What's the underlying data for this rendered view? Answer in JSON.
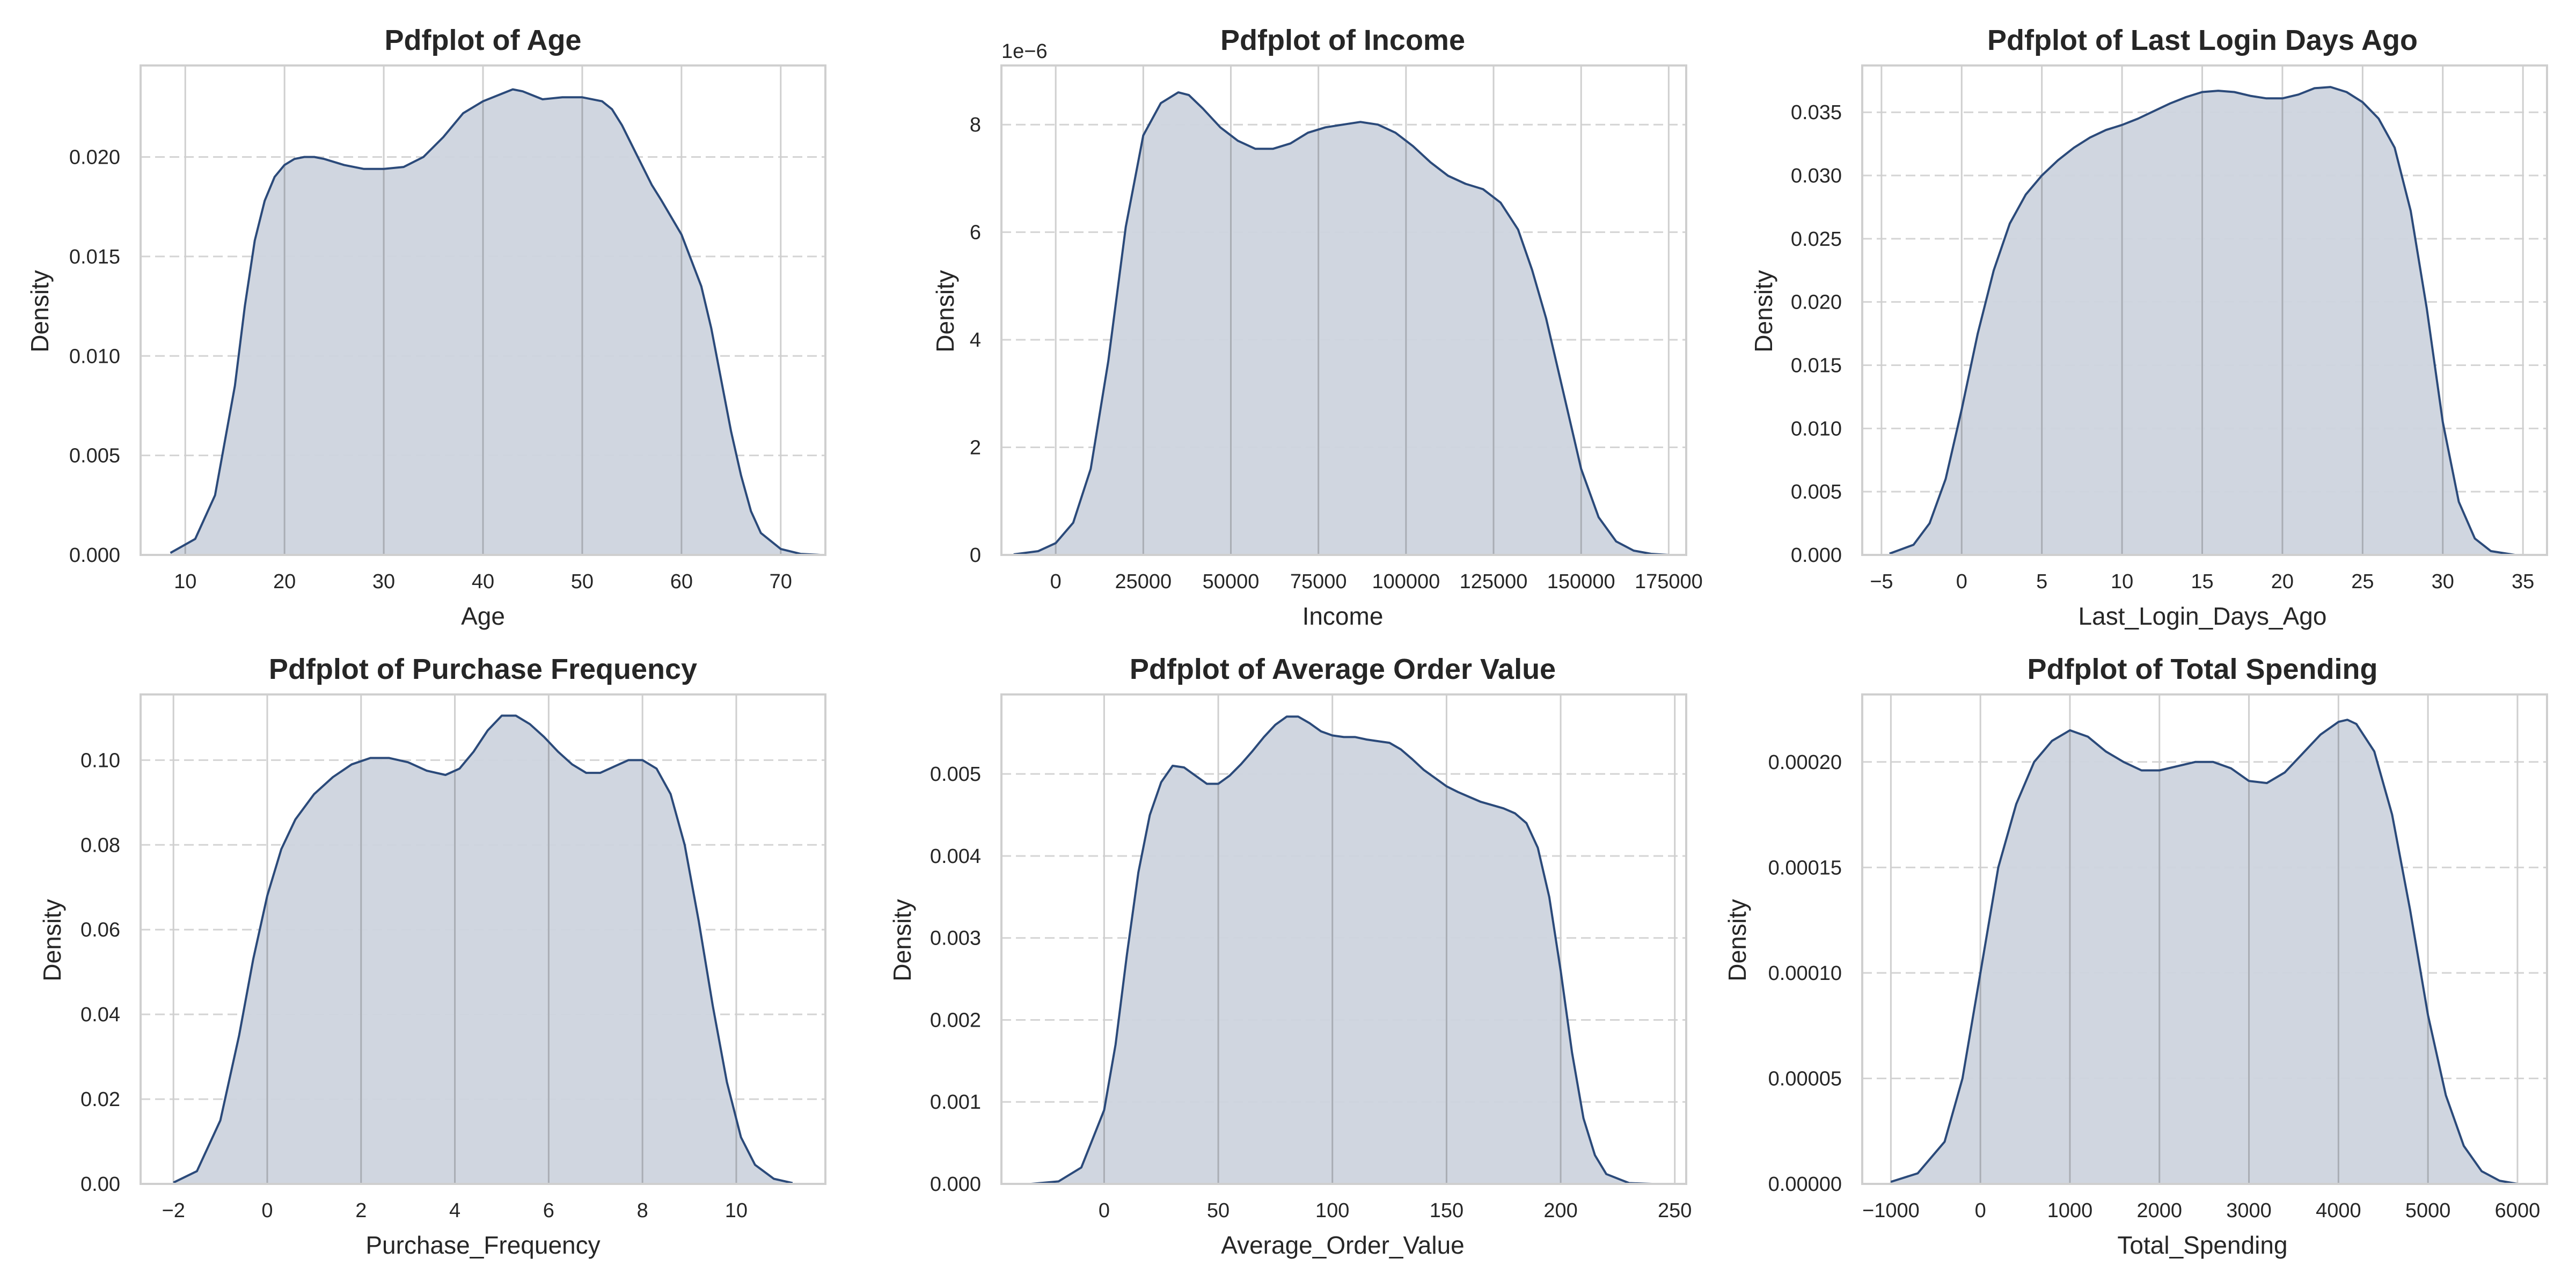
{
  "colors": {
    "line": "#2b4a7a",
    "fill": "#cdd4de",
    "grid_h": "#d4d4d4",
    "grid_v": "#a9adb4",
    "frame": "#cfcfcf"
  },
  "chart_data": [
    {
      "type": "area",
      "title": "Pdfplot of Age",
      "xlabel": "Age",
      "ylabel": "Density",
      "xlim": [
        5.5,
        74.5
      ],
      "ylim": [
        0,
        0.0246
      ],
      "xticks": [
        10,
        20,
        30,
        40,
        50,
        60,
        70
      ],
      "yticks": [
        0,
        0.005,
        0.01,
        0.015,
        0.02
      ],
      "yticklabels": [
        "0.000",
        "0.005",
        "0.010",
        "0.015",
        "0.020"
      ],
      "offset_label": "",
      "grid": true,
      "x": [
        8.5,
        11,
        13,
        15,
        16,
        17,
        18,
        19,
        20,
        21,
        22,
        23,
        24,
        26,
        28,
        30,
        32,
        34,
        35,
        36,
        38,
        40,
        42,
        43,
        44,
        45,
        46,
        48,
        50,
        52,
        53,
        54,
        55,
        56,
        57,
        58,
        60,
        62,
        63,
        64,
        65,
        66,
        67,
        68,
        70,
        72,
        74
      ],
      "y": [
        0.0001,
        0.0008,
        0.003,
        0.0085,
        0.0125,
        0.0158,
        0.0178,
        0.019,
        0.0196,
        0.0199,
        0.02,
        0.02,
        0.0199,
        0.0196,
        0.0194,
        0.0194,
        0.0195,
        0.02,
        0.0205,
        0.021,
        0.0222,
        0.0228,
        0.0232,
        0.0234,
        0.0233,
        0.0231,
        0.0229,
        0.023,
        0.023,
        0.0228,
        0.0224,
        0.0216,
        0.0206,
        0.0196,
        0.0186,
        0.0178,
        0.0161,
        0.0135,
        0.0114,
        0.0088,
        0.0062,
        0.004,
        0.0022,
        0.0011,
        0.0003,
        5e-05,
        0
      ]
    },
    {
      "type": "area",
      "title": "Pdfplot of Income",
      "xlabel": "Income",
      "ylabel": "Density",
      "xlim": [
        -15500,
        180000
      ],
      "ylim": [
        0,
        9.1e-06
      ],
      "xticks": [
        0,
        25000,
        50000,
        75000,
        100000,
        125000,
        150000,
        175000
      ],
      "yticks": [
        0,
        2e-06,
        4e-06,
        6e-06,
        8e-06
      ],
      "yticklabels": [
        "0",
        "2",
        "4",
        "6",
        "8"
      ],
      "offset_label": "1e−6",
      "grid": true,
      "x": [
        -12000,
        -5000,
        0,
        5000,
        10000,
        15000,
        20000,
        25000,
        30000,
        35000,
        38000,
        42000,
        47000,
        52000,
        57000,
        62000,
        67000,
        72000,
        77000,
        82000,
        87000,
        92000,
        97000,
        102000,
        107000,
        112000,
        117000,
        122000,
        127000,
        132000,
        136000,
        140000,
        145000,
        150000,
        155000,
        160000,
        165000,
        170000,
        175000
      ],
      "y": [
        1e-08,
        7e-08,
        2.2e-07,
        6e-07,
        1.6e-06,
        3.6e-06,
        6.1e-06,
        7.8e-06,
        8.4e-06,
        8.6e-06,
        8.55e-06,
        8.3e-06,
        7.95e-06,
        7.7e-06,
        7.55e-06,
        7.55e-06,
        7.65e-06,
        7.85e-06,
        7.95e-06,
        8e-06,
        8.05e-06,
        8e-06,
        7.85e-06,
        7.6e-06,
        7.3e-06,
        7.05e-06,
        6.9e-06,
        6.8e-06,
        6.55e-06,
        6.05e-06,
        5.3e-06,
        4.4e-06,
        3e-06,
        1.6e-06,
        7e-07,
        2.5e-07,
        8e-08,
        2e-08,
        0
      ]
    },
    {
      "type": "area",
      "title": "Pdfplot of Last Login Days Ago",
      "xlabel": "Last_Login_Days_Ago",
      "ylabel": "Density",
      "xlim": [
        -6.2,
        36.5
      ],
      "ylim": [
        0,
        0.0387
      ],
      "xticks": [
        -5,
        0,
        5,
        10,
        15,
        20,
        25,
        30,
        35
      ],
      "yticks": [
        0,
        0.005,
        0.01,
        0.015,
        0.02,
        0.025,
        0.03,
        0.035
      ],
      "yticklabels": [
        "0.000",
        "0.005",
        "0.010",
        "0.015",
        "0.020",
        "0.025",
        "0.030",
        "0.035"
      ],
      "offset_label": "",
      "grid": true,
      "x": [
        -4.5,
        -3,
        -2,
        -1,
        0,
        1,
        2,
        3,
        4,
        5,
        6,
        7,
        8,
        9,
        10,
        11,
        12,
        13,
        14,
        15,
        16,
        17,
        18,
        19,
        20,
        21,
        22,
        23,
        24,
        25,
        26,
        27,
        28,
        29,
        30,
        31,
        32,
        33,
        34.5
      ],
      "y": [
        0.0001,
        0.0008,
        0.0025,
        0.006,
        0.0115,
        0.0175,
        0.0225,
        0.0262,
        0.0285,
        0.03,
        0.0312,
        0.0322,
        0.033,
        0.0336,
        0.034,
        0.0345,
        0.0351,
        0.0357,
        0.0362,
        0.0366,
        0.0367,
        0.0366,
        0.0363,
        0.0361,
        0.0361,
        0.0364,
        0.0369,
        0.037,
        0.0366,
        0.0358,
        0.0345,
        0.0322,
        0.0272,
        0.0195,
        0.0105,
        0.0042,
        0.0013,
        0.0003,
        0
      ]
    },
    {
      "type": "area",
      "title": "Pdfplot of Purchase Frequency",
      "xlabel": "Purchase_Frequency",
      "ylabel": "Density",
      "xlim": [
        -2.7,
        11.9
      ],
      "ylim": [
        0,
        0.1155
      ],
      "xticks": [
        -2,
        0,
        2,
        4,
        6,
        8,
        10
      ],
      "yticks": [
        0,
        0.02,
        0.04,
        0.06,
        0.08,
        0.1
      ],
      "yticklabels": [
        "0.00",
        "0.02",
        "0.04",
        "0.06",
        "0.08",
        "0.10"
      ],
      "offset_label": "",
      "grid": true,
      "x": [
        -2,
        -1.5,
        -1,
        -0.6,
        -0.3,
        0,
        0.3,
        0.6,
        1,
        1.4,
        1.8,
        2.2,
        2.6,
        3,
        3.4,
        3.8,
        4.1,
        4.4,
        4.7,
        5,
        5.3,
        5.6,
        5.9,
        6.2,
        6.5,
        6.8,
        7.1,
        7.4,
        7.7,
        8,
        8.3,
        8.6,
        8.9,
        9.2,
        9.5,
        9.8,
        10.1,
        10.4,
        10.8,
        11.2
      ],
      "y": [
        0.0003,
        0.003,
        0.015,
        0.035,
        0.053,
        0.068,
        0.079,
        0.086,
        0.092,
        0.096,
        0.099,
        0.1005,
        0.1005,
        0.0995,
        0.0975,
        0.0965,
        0.098,
        0.102,
        0.107,
        0.1105,
        0.1105,
        0.1085,
        0.1055,
        0.102,
        0.099,
        0.097,
        0.097,
        0.0985,
        0.1,
        0.1,
        0.098,
        0.092,
        0.08,
        0.062,
        0.042,
        0.024,
        0.011,
        0.0045,
        0.0012,
        0.0002
      ]
    },
    {
      "type": "area",
      "title": "Pdfplot of Average Order Value",
      "xlabel": "Average_Order_Value",
      "ylabel": "Density",
      "xlim": [
        -45,
        255
      ],
      "ylim": [
        0,
        0.00597
      ],
      "xticks": [
        0,
        50,
        100,
        150,
        200,
        250
      ],
      "yticks": [
        0,
        0.001,
        0.002,
        0.003,
        0.004,
        0.005
      ],
      "yticklabels": [
        "0.000",
        "0.001",
        "0.002",
        "0.003",
        "0.004",
        "0.005"
      ],
      "offset_label": "",
      "grid": true,
      "x": [
        -32,
        -20,
        -10,
        0,
        5,
        10,
        15,
        20,
        25,
        30,
        35,
        40,
        45,
        50,
        55,
        60,
        65,
        70,
        75,
        80,
        85,
        90,
        95,
        100,
        105,
        110,
        115,
        120,
        125,
        130,
        135,
        140,
        145,
        150,
        155,
        160,
        165,
        170,
        175,
        180,
        185,
        190,
        195,
        200,
        205,
        210,
        215,
        220,
        230,
        240
      ],
      "y": [
        0,
        3e-05,
        0.0002,
        0.0009,
        0.0017,
        0.0028,
        0.0038,
        0.0045,
        0.0049,
        0.0051,
        0.00508,
        0.00498,
        0.00488,
        0.00488,
        0.00498,
        0.00512,
        0.00528,
        0.00545,
        0.0056,
        0.0057,
        0.0057,
        0.00562,
        0.00552,
        0.00547,
        0.00545,
        0.00545,
        0.00542,
        0.0054,
        0.00538,
        0.0053,
        0.00518,
        0.00505,
        0.00495,
        0.00485,
        0.00478,
        0.00472,
        0.00466,
        0.00462,
        0.00458,
        0.00452,
        0.0044,
        0.0041,
        0.0035,
        0.0026,
        0.0016,
        0.0008,
        0.00035,
        0.00012,
        1e-05,
        0
      ]
    },
    {
      "type": "area",
      "title": "Pdfplot of Total Spending",
      "xlabel": "Total_Spending",
      "ylabel": "Density",
      "xlim": [
        -1320,
        6330
      ],
      "ylim": [
        0,
        0.000232
      ],
      "xticks": [
        -1000,
        0,
        1000,
        2000,
        3000,
        4000,
        5000,
        6000
      ],
      "yticks": [
        0,
        5e-05,
        0.0001,
        0.00015,
        0.0002
      ],
      "yticklabels": [
        "0.00000",
        "0.00005",
        "0.00010",
        "0.00015",
        "0.00020"
      ],
      "offset_label": "",
      "grid": true,
      "x": [
        -1000,
        -700,
        -400,
        -200,
        0,
        200,
        400,
        600,
        800,
        1000,
        1200,
        1400,
        1600,
        1800,
        2000,
        2200,
        2400,
        2600,
        2800,
        3000,
        3200,
        3400,
        3600,
        3800,
        4000,
        4100,
        4200,
        4400,
        4600,
        4800,
        5000,
        5200,
        5400,
        5600,
        5800,
        6000
      ],
      "y": [
        1e-06,
        5e-06,
        2e-05,
        5e-05,
        0.0001,
        0.00015,
        0.00018,
        0.0002,
        0.00021,
        0.000215,
        0.000212,
        0.000205,
        0.0002,
        0.000196,
        0.000196,
        0.000198,
        0.0002,
        0.0002,
        0.000197,
        0.000191,
        0.00019,
        0.000195,
        0.000204,
        0.000213,
        0.000219,
        0.00022,
        0.000218,
        0.000205,
        0.000175,
        0.00013,
        8e-05,
        4.2e-05,
        1.8e-05,
        6e-06,
        1.5e-06,
        0
      ]
    }
  ]
}
